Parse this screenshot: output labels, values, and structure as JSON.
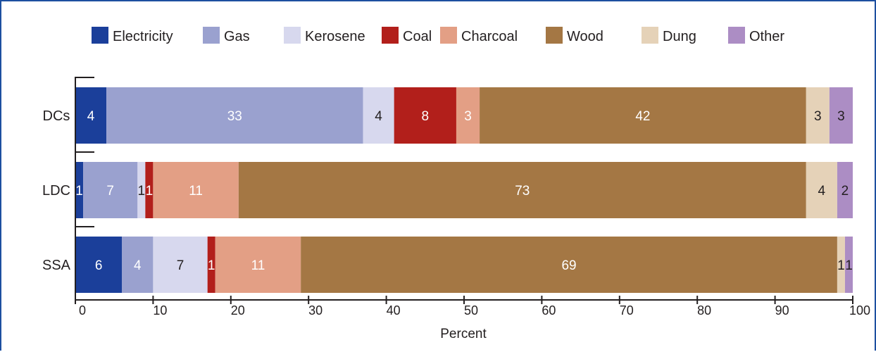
{
  "chart_data": {
    "type": "bar",
    "orientation": "horizontal",
    "stacked": true,
    "categories": [
      "DCs",
      "LDC",
      "SSA"
    ],
    "series": [
      {
        "name": "Electricity",
        "color": "#1b3f9a",
        "label_color": "#ffffff",
        "values": [
          4,
          1,
          6
        ],
        "labels": [
          "4",
          "1",
          "6"
        ]
      },
      {
        "name": "Gas",
        "color": "#9aa1cf",
        "label_color": "#ffffff",
        "values": [
          33,
          7,
          4
        ],
        "labels": [
          "33",
          "7",
          "4"
        ]
      },
      {
        "name": "Kerosene",
        "color": "#d7d8ee",
        "label_color": "#231f20",
        "values": [
          4,
          1,
          7
        ],
        "labels": [
          "4",
          "1",
          "7"
        ]
      },
      {
        "name": "Coal",
        "color": "#b21f1b",
        "label_color": "#ffffff",
        "values": [
          8,
          1,
          1
        ],
        "labels": [
          "8",
          "1",
          "1"
        ]
      },
      {
        "name": "Charcoal",
        "color": "#e39f85",
        "label_color": "#ffffff",
        "values": [
          3,
          11,
          11
        ],
        "labels": [
          "3",
          "11",
          "11"
        ]
      },
      {
        "name": "Wood",
        "color": "#a47744",
        "label_color": "#ffffff",
        "values": [
          42,
          73,
          69
        ],
        "labels": [
          "42",
          "73",
          "69"
        ]
      },
      {
        "name": "Dung",
        "color": "#e5d2b8",
        "label_color": "#231f20",
        "values": [
          3,
          4,
          1
        ],
        "labels": [
          "3",
          "4",
          "1"
        ]
      },
      {
        "name": "Other",
        "color": "#ac8dc4",
        "label_color": "#231f20",
        "values": [
          3,
          2,
          1
        ],
        "labels": [
          "3",
          "2",
          "1"
        ]
      }
    ],
    "xlabel": "Percent",
    "ylabel": "",
    "xlim": [
      0,
      100
    ],
    "xticks": [
      0,
      10,
      20,
      30,
      40,
      50,
      60,
      70,
      80,
      90,
      100
    ],
    "legend_position": "top",
    "grid": false
  }
}
